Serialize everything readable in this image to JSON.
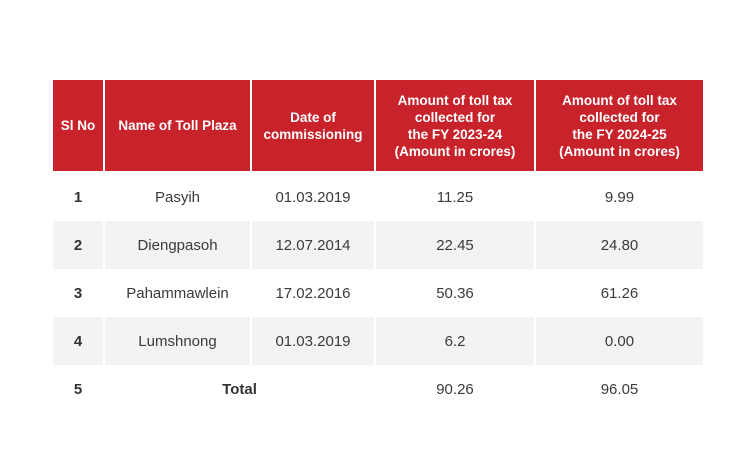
{
  "table": {
    "header_color": "#c8232b",
    "row_stripe_color": "#f3f3f3",
    "columns": [
      "Sl No",
      "Name of Toll Plaza",
      "Date of\ncommissioning",
      "Amount of toll tax\ncollected for\nthe FY 2023-24\n(Amount in crores)",
      "Amount of toll tax\ncollected for\nthe FY 2024-25\n(Amount in crores)"
    ],
    "rows": [
      {
        "sl": "1",
        "name": "Pasyih",
        "date": "01.03.2019",
        "fy2324": "11.25",
        "fy2425": "9.99"
      },
      {
        "sl": "2",
        "name": "Diengpasoh",
        "date": "12.07.2014",
        "fy2324": "22.45",
        "fy2425": "24.80"
      },
      {
        "sl": "3",
        "name": "Pahammawlein",
        "date": "17.02.2016",
        "fy2324": "50.36",
        "fy2425": "61.26"
      },
      {
        "sl": "4",
        "name": "Lumshnong",
        "date": "01.03.2019",
        "fy2324": "6.2",
        "fy2425": "0.00"
      }
    ],
    "total": {
      "sl": "5",
      "label": "Total",
      "fy2324": "90.26",
      "fy2425": "96.05"
    }
  }
}
